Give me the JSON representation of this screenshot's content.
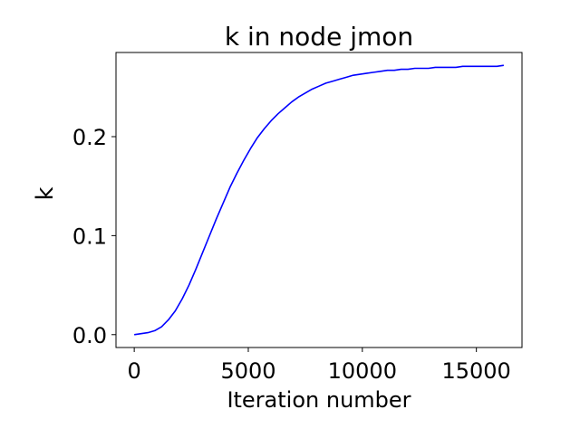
{
  "chart_data": {
    "type": "line",
    "title": "k in node jmon",
    "xlabel": "Iteration number",
    "ylabel": "k",
    "xlim": [
      -800,
      17000
    ],
    "ylim": [
      -0.013,
      0.285
    ],
    "xticks": [
      0,
      5000,
      10000,
      15000
    ],
    "xtick_labels": [
      "0",
      "5000",
      "10000",
      "15000"
    ],
    "yticks": [
      0.0,
      0.1,
      0.2
    ],
    "ytick_labels": [
      "0.0",
      "0.1",
      "0.2"
    ],
    "grid": false,
    "legend": "none",
    "series": [
      {
        "color": "#0000ff",
        "x": [
          0,
          300,
          600,
          900,
          1200,
          1500,
          1800,
          2100,
          2400,
          2700,
          3000,
          3300,
          3600,
          3900,
          4200,
          4500,
          4800,
          5100,
          5400,
          5700,
          6000,
          6300,
          6600,
          6900,
          7200,
          7500,
          7800,
          8100,
          8400,
          8700,
          9000,
          9300,
          9600,
          9900,
          10200,
          10500,
          10800,
          11100,
          11400,
          11700,
          12000,
          12300,
          12600,
          12900,
          13200,
          13500,
          13800,
          14100,
          14400,
          14700,
          15000,
          15300,
          15600,
          15900,
          16200
        ],
        "y": [
          0.0,
          0.001,
          0.002,
          0.004,
          0.008,
          0.015,
          0.024,
          0.036,
          0.05,
          0.066,
          0.083,
          0.1,
          0.117,
          0.133,
          0.149,
          0.163,
          0.176,
          0.188,
          0.199,
          0.208,
          0.216,
          0.223,
          0.229,
          0.235,
          0.24,
          0.244,
          0.248,
          0.251,
          0.254,
          0.256,
          0.258,
          0.26,
          0.262,
          0.263,
          0.264,
          0.265,
          0.266,
          0.267,
          0.267,
          0.268,
          0.268,
          0.269,
          0.269,
          0.269,
          0.27,
          0.27,
          0.27,
          0.27,
          0.271,
          0.271,
          0.271,
          0.271,
          0.271,
          0.271,
          0.272
        ]
      }
    ]
  }
}
